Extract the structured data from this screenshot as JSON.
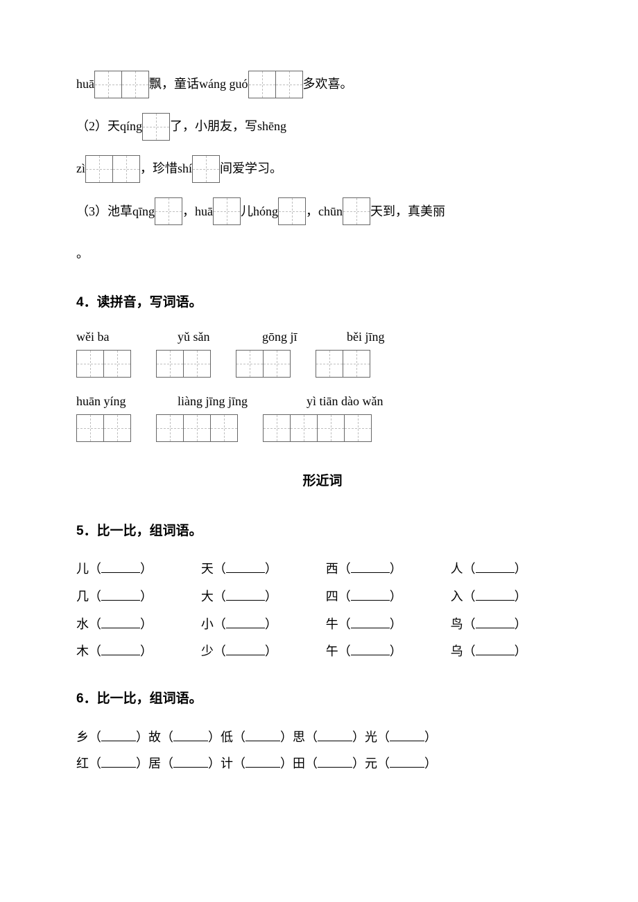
{
  "line1": {
    "pre": "huā",
    "mid": "飘，童话wáng guó",
    "post": "多欢喜。"
  },
  "line2": {
    "pre": "（2）天qíng",
    "post": "了，小朋友，写shēng"
  },
  "line3": {
    "pre": "zì",
    "mid": "，珍惜shí",
    "post": "间爱学习。"
  },
  "line4": {
    "pre": "（3）池草qīng",
    "a": "，huā",
    "b": "儿hóng",
    "c": "，chūn",
    "post": "天到，真美丽"
  },
  "line4_end": "。",
  "q4_title": "4．读拼音，写词语。",
  "q4_row1_pinyin": [
    "wěi  ba",
    "yǔ sǎn",
    "gōng jī",
    "běi jīng"
  ],
  "q4_row1_boxes": [
    2,
    2,
    2,
    2
  ],
  "q4_row2_pinyin": [
    "huān yíng",
    "liàng jīng jīng",
    "yì tiān dào wǎn"
  ],
  "q4_row2_boxes": [
    2,
    3,
    4
  ],
  "section_title": "形近词",
  "q5_title": "5．比一比，组词语。",
  "q5_rows": [
    [
      "儿",
      "天",
      "西",
      "人"
    ],
    [
      "几",
      "大",
      "四",
      "入"
    ],
    [
      "水",
      "小",
      "牛",
      "鸟"
    ],
    [
      "木",
      "少",
      "午",
      "乌"
    ]
  ],
  "q6_title": "6．比一比，组词语。",
  "q6_rows": [
    [
      "乡",
      "故",
      "低",
      "思",
      "光"
    ],
    [
      "红",
      "居",
      "计",
      "田",
      "元"
    ]
  ]
}
